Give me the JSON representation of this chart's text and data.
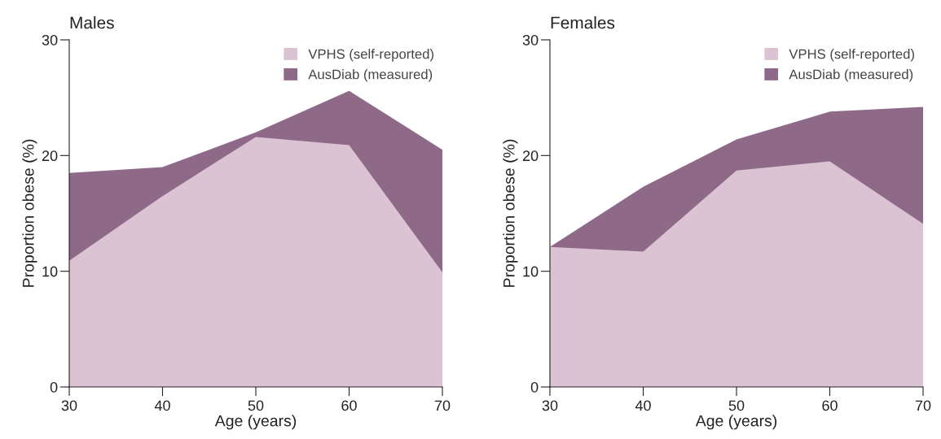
{
  "chart_data": [
    {
      "type": "area",
      "title": "Males",
      "xlabel": "Age (years)",
      "ylabel": "Proportion obese (%)",
      "x": [
        30,
        40,
        50,
        60,
        70
      ],
      "xlim": [
        30,
        70
      ],
      "xticks": [
        30,
        40,
        50,
        60,
        70
      ],
      "ylim": [
        0,
        30
      ],
      "yticks": [
        0,
        10,
        20,
        30
      ],
      "legend": "top right",
      "grid": false,
      "series": [
        {
          "name": "VPHS (self-reported)",
          "color": "#dcc3d3",
          "values": [
            10.9,
            16.5,
            21.6,
            20.9,
            9.9
          ]
        },
        {
          "name": "AusDiab (measured)",
          "color": "#8e6a88",
          "values": [
            18.5,
            19.0,
            22.0,
            25.6,
            20.5
          ]
        }
      ]
    },
    {
      "type": "area",
      "title": "Females",
      "xlabel": "Age (years)",
      "ylabel": "Proportion obese (%)",
      "x": [
        30,
        40,
        50,
        60,
        70
      ],
      "xlim": [
        30,
        70
      ],
      "xticks": [
        30,
        40,
        50,
        60,
        70
      ],
      "ylim": [
        0,
        30
      ],
      "yticks": [
        0,
        10,
        20,
        30
      ],
      "legend": "top right",
      "grid": false,
      "series": [
        {
          "name": "VPHS (self-reported)",
          "color": "#dcc3d3",
          "values": [
            12.1,
            11.7,
            18.7,
            19.5,
            14.1
          ]
        },
        {
          "name": "AusDiab (measured)",
          "color": "#8e6a88",
          "values": [
            12.1,
            17.3,
            21.4,
            23.8,
            24.2
          ]
        }
      ]
    }
  ]
}
